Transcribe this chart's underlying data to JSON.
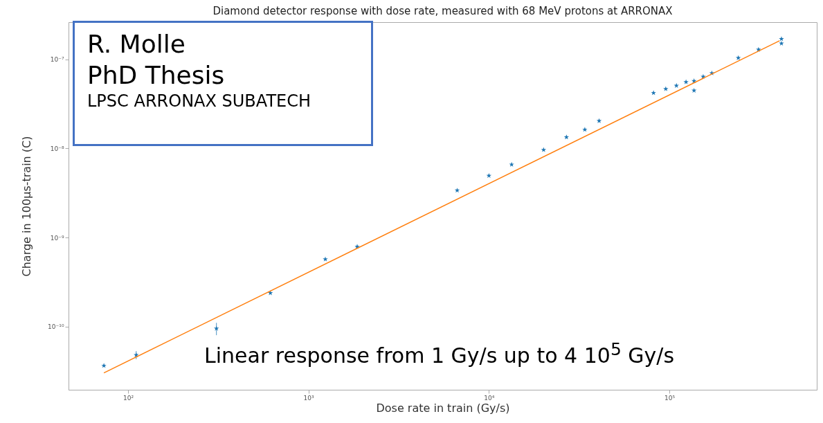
{
  "chart_data": {
    "type": "scatter",
    "title": "Diamond detector response with dose rate, measured with 68 MeV protons at ARRONAX",
    "xlabel": "Dose rate in train (Gy/s)",
    "ylabel": "Charge in 100µs-train (C)",
    "log": "xy",
    "grid": false,
    "xlim": [
      46.8,
      656000
    ],
    "ylim": [
      1.95e-11,
      2.62e-07
    ],
    "xticks": [
      {
        "value": 100,
        "label": "10²"
      },
      {
        "value": 1000,
        "label": "10³"
      },
      {
        "value": 10000,
        "label": "10⁴"
      },
      {
        "value": 100000,
        "label": "10⁵"
      }
    ],
    "yticks": [
      {
        "value": 1e-10,
        "label": "10⁻¹⁰"
      },
      {
        "value": 1e-09,
        "label": "10⁻⁹"
      },
      {
        "value": 1e-08,
        "label": "10⁻⁸"
      },
      {
        "value": 1e-07,
        "label": "10⁻⁷"
      }
    ],
    "series": [
      {
        "marker": "star",
        "color": "#1f77b4",
        "x": [
          73.5,
          111,
          309,
          615,
          1240,
          1862,
          6670,
          10000,
          13360,
          20100,
          26900,
          34000,
          40800,
          81700,
          95500,
          109400,
          123700,
          137000,
          137000,
          154000,
          172000,
          241000,
          312000,
          418000,
          418000
        ],
        "values": [
          3.64e-11,
          4.79e-11,
          9.5e-11,
          2.38e-10,
          5.7e-10,
          7.9e-10,
          3.38e-09,
          4.94e-09,
          6.6e-09,
          9.64e-09,
          1.34e-08,
          1.63e-08,
          2.04e-08,
          4.21e-08,
          4.66e-08,
          5.07e-08,
          5.57e-08,
          5.73e-08,
          4.47e-08,
          6.4e-08,
          7e-08,
          1.04e-07,
          1.29e-07,
          1.7e-07,
          1.51e-07
        ],
        "errors": [
          null,
          [
            4.3e-11,
            5.3e-11
          ],
          [
            8e-11,
            1.1e-10
          ],
          null,
          null,
          null,
          null,
          null,
          null,
          null,
          null,
          null,
          null,
          null,
          null,
          null,
          null,
          null,
          null,
          null,
          null,
          null,
          null,
          null,
          null
        ]
      },
      {
        "type": "line",
        "color": "#ff7f0e",
        "x": [
          73.5,
          408000
        ],
        "values": [
          3.02e-11,
          1.62e-07
        ]
      }
    ],
    "annotations": [
      "R. Molle",
      "PhD Thesis",
      "LPSC ARRONAX SUBATECH",
      "Linear response from 1 Gy/s up to 4 10$^{5}$ Gy/s"
    ]
  }
}
